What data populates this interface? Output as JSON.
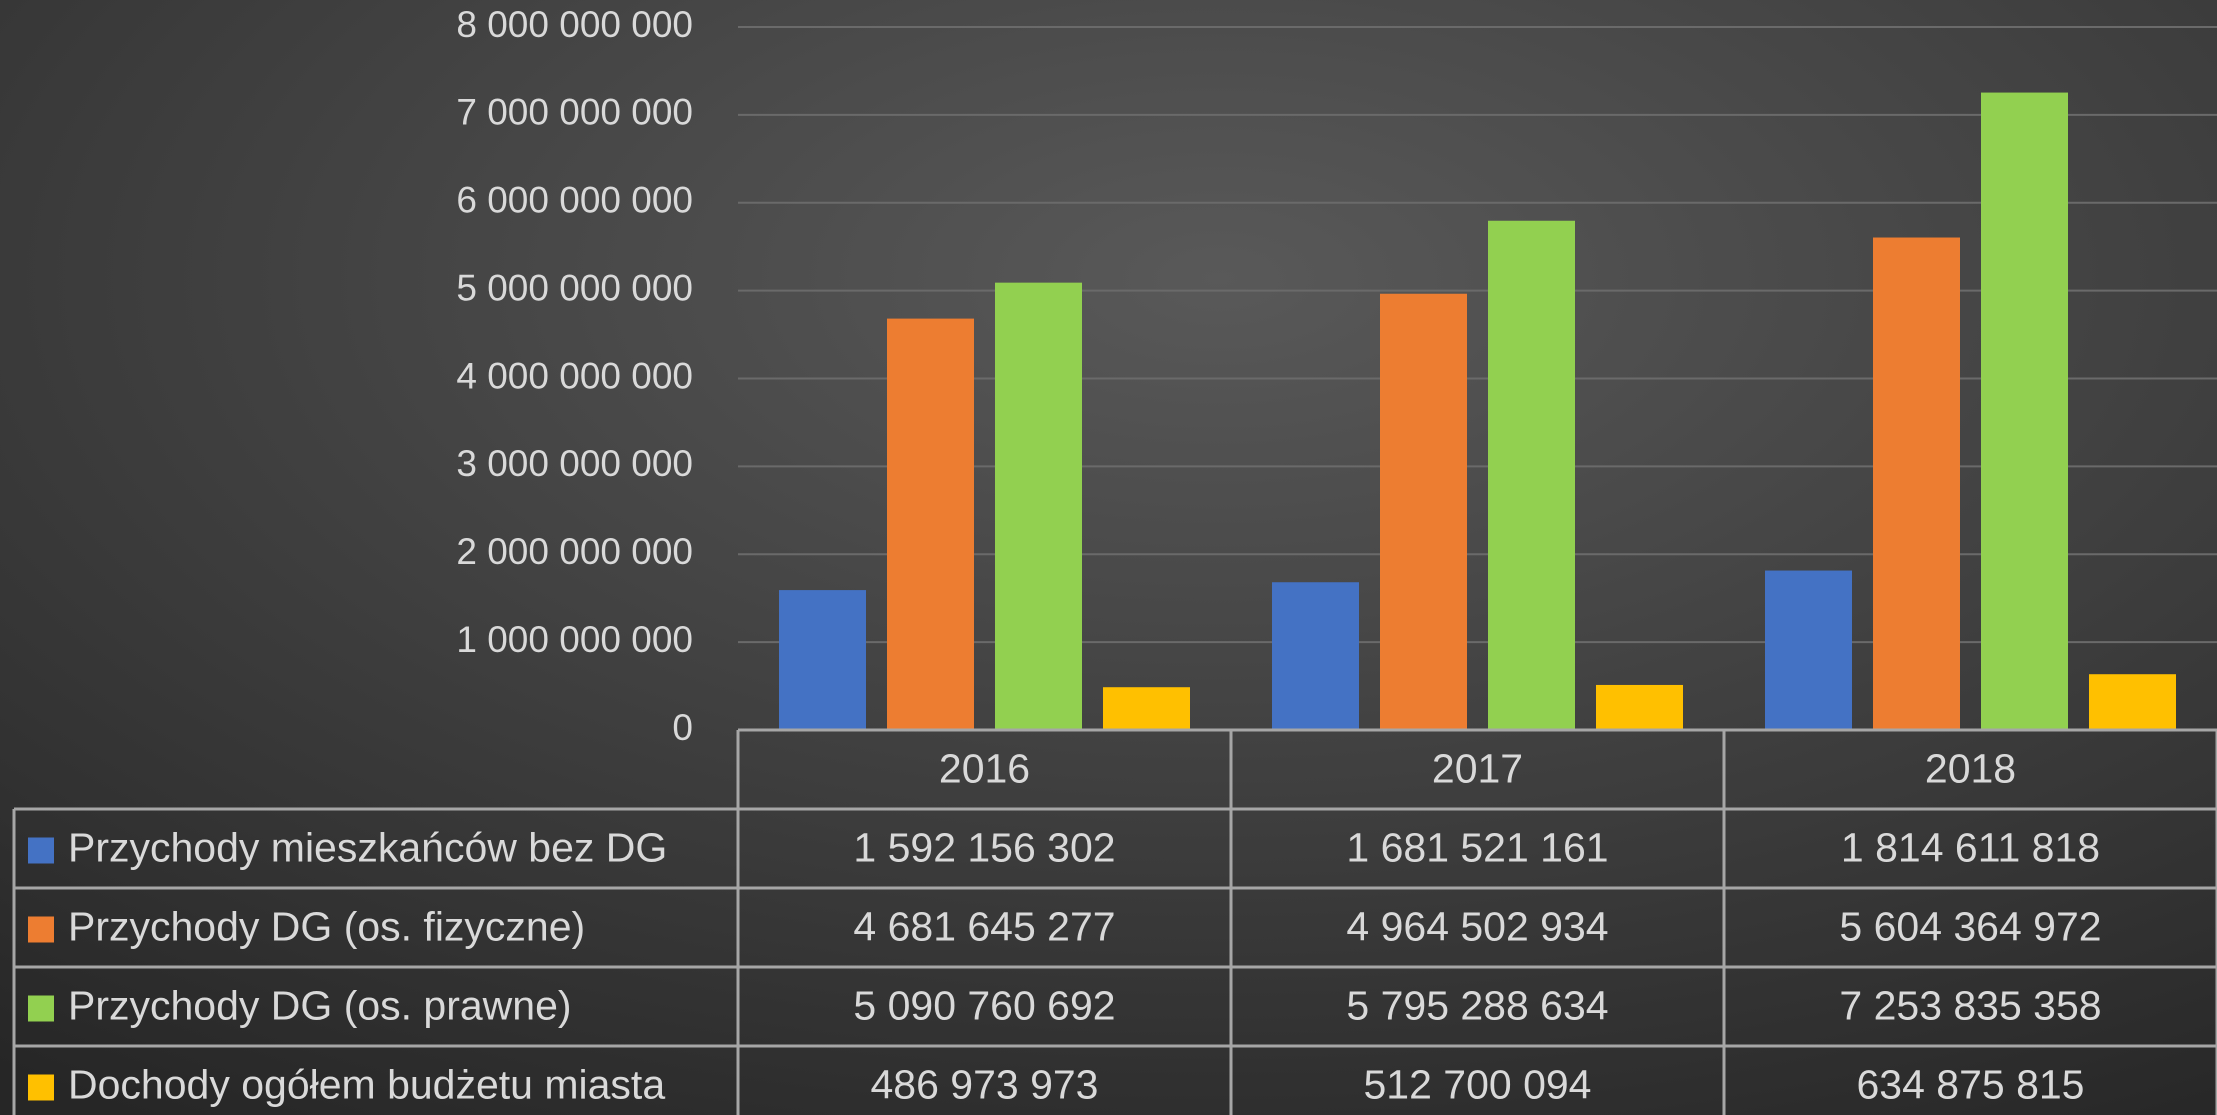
{
  "chart_data": {
    "type": "bar",
    "categories": [
      "2016",
      "2017",
      "2018"
    ],
    "series": [
      {
        "name": "Przychody mieszkańców bez DG",
        "color": "#4472c4",
        "values": [
          1592156302,
          1681521161,
          1814611818
        ],
        "value_labels": [
          "1 592 156 302",
          "1 681 521 161",
          "1 814 611 818"
        ]
      },
      {
        "name": "Przychody DG (os. fizyczne)",
        "color": "#ed7d31",
        "values": [
          4681645277,
          4964502934,
          5604364972
        ],
        "value_labels": [
          "4 681 645 277",
          "4 964 502 934",
          "5 604 364 972"
        ]
      },
      {
        "name": "Przychody DG (os. prawne)",
        "color": "#92d050",
        "values": [
          5090760692,
          5795288634,
          7253835358
        ],
        "value_labels": [
          "5 090 760 692",
          "5 795 288 634",
          "7 253 835 358"
        ]
      },
      {
        "name": "Dochody ogółem budżetu miasta",
        "color": "#ffc000",
        "values": [
          486973973,
          512700094,
          634875815
        ],
        "value_labels": [
          "486 973 973",
          "512 700 094",
          "634 875 815"
        ]
      }
    ],
    "ylim": [
      0,
      8000000000
    ],
    "yticks": [
      0,
      {
        "value": 1000000000,
        "label": "1 000 000 000"
      },
      {
        "value": 2000000000,
        "label": "2 000 000 000"
      },
      {
        "value": 3000000000,
        "label": "3 000 000 000"
      },
      {
        "value": 4000000000,
        "label": "4 000 000 000"
      },
      {
        "value": 5000000000,
        "label": "5 000 000 000"
      },
      {
        "value": 6000000000,
        "label": "6 000 000 000"
      },
      {
        "value": 7000000000,
        "label": "7 000 000 000"
      },
      {
        "value": 8000000000,
        "label": "8 000 000 000"
      }
    ],
    "grid": true,
    "data_table": true
  }
}
